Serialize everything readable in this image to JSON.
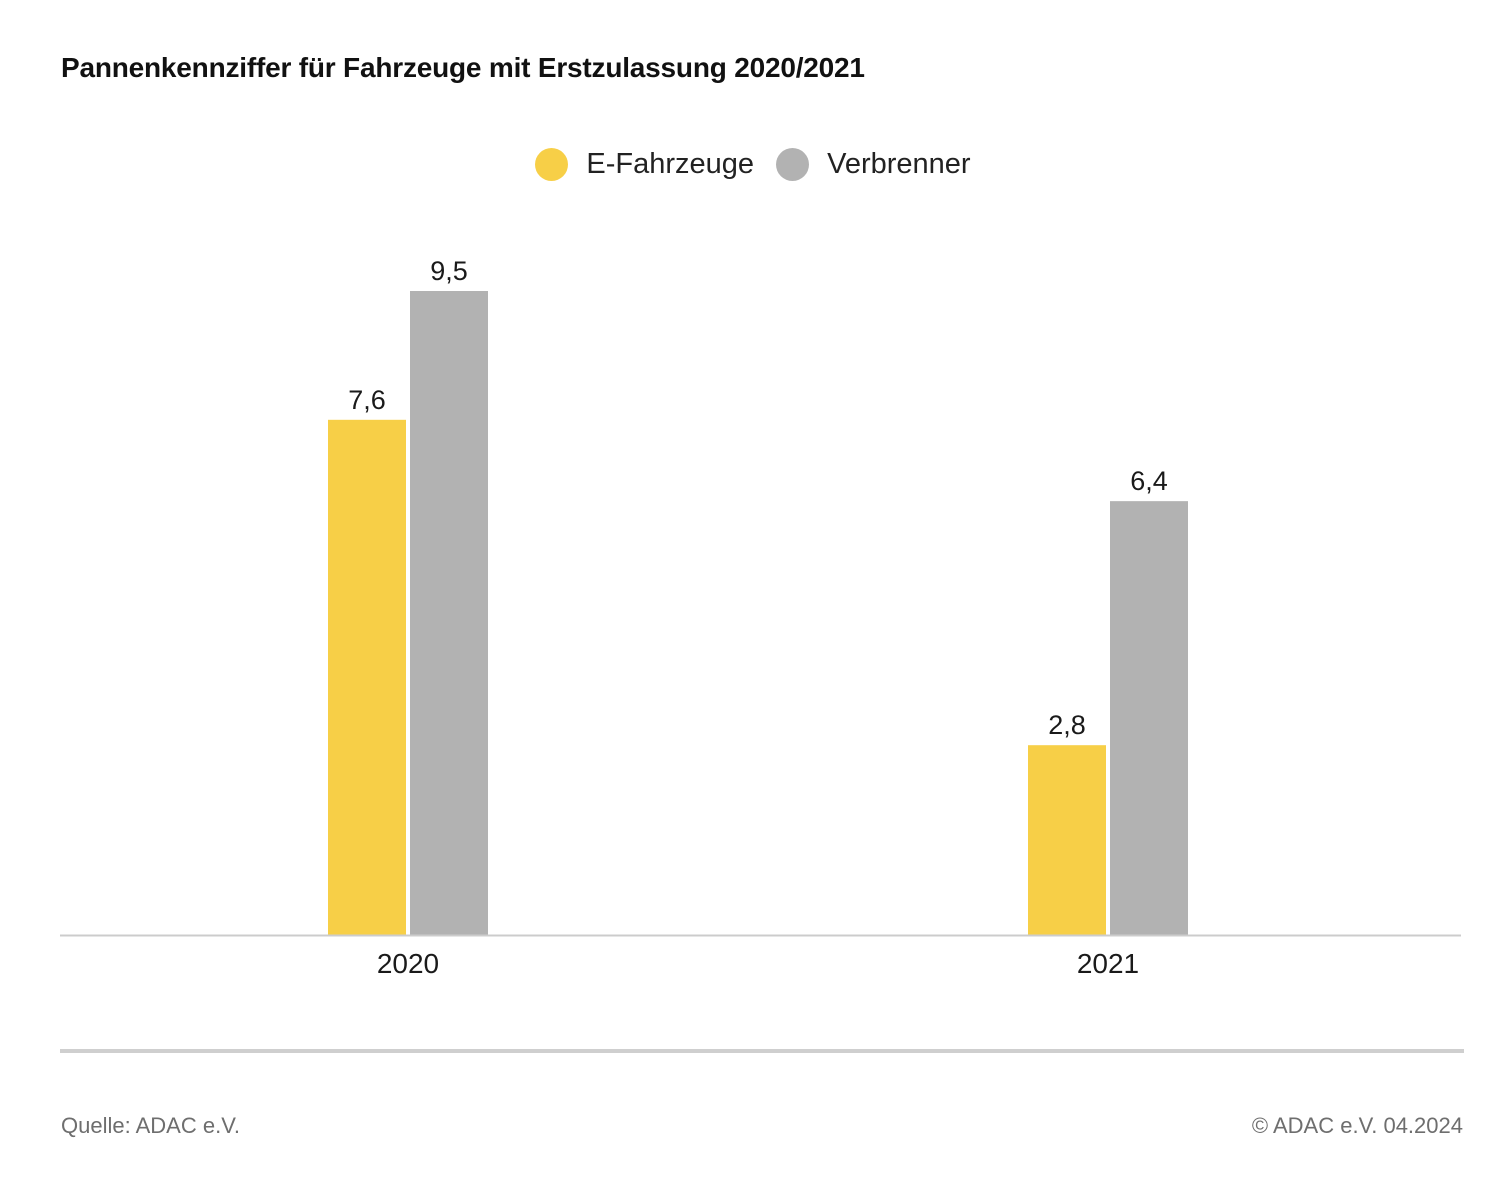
{
  "chart_data": {
    "type": "bar",
    "title": "Pannenkennziffer für Fahrzeuge mit Erstzulassung 2020/2021",
    "categories": [
      "2020",
      "2021"
    ],
    "series": [
      {
        "name": "E-Fahrzeuge",
        "values": [
          7.6,
          2.8
        ],
        "labels": [
          "7,6",
          "2,8"
        ],
        "color": "#f7cf47"
      },
      {
        "name": "Verbrenner",
        "values": [
          9.5,
          6.4
        ],
        "labels": [
          "9,5",
          "6,4"
        ],
        "color": "#b2b2b2"
      }
    ],
    "xlabel": "",
    "ylabel": "",
    "ylim": [
      0,
      9.5
    ],
    "grid": false,
    "legend_position": "top-center",
    "baseline_color": "#cccccc"
  },
  "footer": {
    "source": "Quelle: ADAC e.V.",
    "copyright": "© ADAC e.V. 04.2024"
  }
}
